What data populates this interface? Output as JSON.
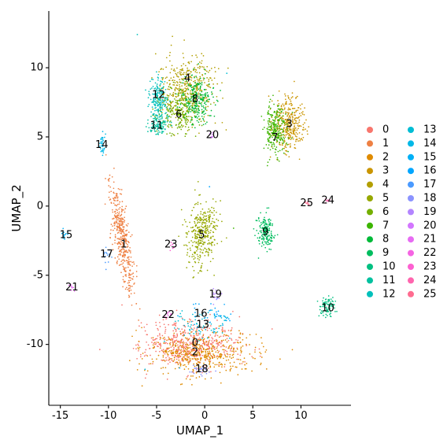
{
  "chart_data": {
    "type": "scatter",
    "xlabel": "UMAP_1",
    "ylabel": "UMAP_2",
    "xlim": [
      -16.2,
      15.2
    ],
    "ylim": [
      -14.4,
      14.1
    ],
    "x_ticks": [
      -15,
      -10,
      -5,
      0,
      5,
      10
    ],
    "y_ticks": [
      -10,
      -5,
      0,
      5,
      10
    ],
    "grid": false,
    "legend_position": "right",
    "clusters": [
      {
        "name": "0",
        "color": "#F8766D",
        "label_pos": [
          -1.0,
          -9.9
        ]
      },
      {
        "name": "1",
        "color": "#EE8043",
        "label_pos": [
          -8.4,
          -2.8
        ]
      },
      {
        "name": "2",
        "color": "#DF8B00",
        "label_pos": [
          -1.0,
          -10.6
        ]
      },
      {
        "name": "3",
        "color": "#CA9500",
        "label_pos": [
          8.8,
          5.9
        ]
      },
      {
        "name": "4",
        "color": "#B39F00",
        "label_pos": [
          -1.8,
          9.2
        ]
      },
      {
        "name": "5",
        "color": "#96A800",
        "label_pos": [
          -0.3,
          -2.1
        ]
      },
      {
        "name": "6",
        "color": "#74AF00",
        "label_pos": [
          -2.7,
          6.6
        ]
      },
      {
        "name": "7",
        "color": "#3CB500",
        "label_pos": [
          7.3,
          4.9
        ]
      },
      {
        "name": "8",
        "color": "#00BA39",
        "label_pos": [
          -1.0,
          7.7
        ]
      },
      {
        "name": "9",
        "color": "#00BD5F",
        "label_pos": [
          6.3,
          -1.9
        ]
      },
      {
        "name": "10",
        "color": "#00C081",
        "label_pos": [
          12.8,
          -7.4
        ]
      },
      {
        "name": "11",
        "color": "#00C19F",
        "label_pos": [
          -5.0,
          5.8
        ]
      },
      {
        "name": "12",
        "color": "#00C0BB",
        "label_pos": [
          -4.8,
          8.0
        ]
      },
      {
        "name": "13",
        "color": "#00BDD4",
        "label_pos": [
          -0.2,
          -8.6
        ]
      },
      {
        "name": "14",
        "color": "#00B8E7",
        "label_pos": [
          -10.7,
          4.4
        ]
      },
      {
        "name": "15",
        "color": "#00B0F6",
        "label_pos": [
          -14.4,
          -2.1
        ]
      },
      {
        "name": "16",
        "color": "#00A6FF",
        "label_pos": [
          -0.4,
          -7.8
        ]
      },
      {
        "name": "17",
        "color": "#4A9AFF",
        "label_pos": [
          -10.2,
          -3.5
        ]
      },
      {
        "name": "18",
        "color": "#8B93FF",
        "label_pos": [
          -0.3,
          -11.8
        ]
      },
      {
        "name": "19",
        "color": "#B385FF",
        "label_pos": [
          1.1,
          -6.4
        ]
      },
      {
        "name": "20",
        "color": "#D376FF",
        "label_pos": [
          0.8,
          5.1
        ]
      },
      {
        "name": "21",
        "color": "#E76BF3",
        "label_pos": [
          -13.8,
          -5.9
        ]
      },
      {
        "name": "22",
        "color": "#F564E3",
        "label_pos": [
          -3.8,
          -7.9
        ]
      },
      {
        "name": "23",
        "color": "#FD61D1",
        "label_pos": [
          -3.5,
          -2.8
        ]
      },
      {
        "name": "24",
        "color": "#FF65AE",
        "label_pos": [
          12.8,
          0.4
        ]
      },
      {
        "name": "25",
        "color": "#FF6C90",
        "label_pos": [
          10.6,
          0.2
        ]
      }
    ]
  }
}
